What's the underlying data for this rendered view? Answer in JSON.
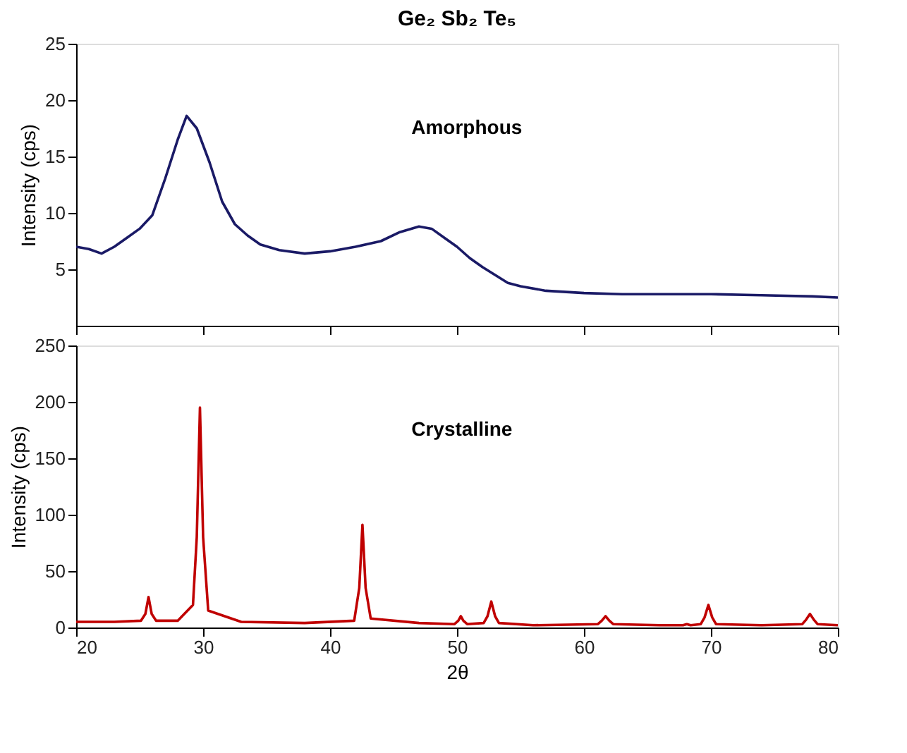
{
  "chart_data": [
    {
      "type": "line",
      "title": "Ge₂ Sb₂ Te₅",
      "ylabel": "Intensity (cps)",
      "annotations": [
        "Amorphous"
      ],
      "tick_labels": "y",
      "grid": false,
      "xlim": [
        20,
        80
      ],
      "xticks": [
        20,
        30,
        40,
        50,
        60,
        70,
        80
      ],
      "ylim": [
        0,
        25
      ],
      "yticks": [
        5,
        10,
        15,
        20,
        25
      ],
      "x": [
        20,
        21,
        22,
        23,
        24,
        25,
        26,
        27,
        28,
        28.7,
        29.5,
        30.5,
        31.5,
        32.5,
        33.5,
        34.5,
        36,
        38,
        40,
        42,
        44,
        45.5,
        47,
        48,
        49,
        50,
        51,
        52,
        53,
        54,
        55,
        57,
        60,
        63,
        66,
        70,
        74,
        78,
        80
      ],
      "series": [
        {
          "color": "#1a1a66",
          "values": [
            7.0,
            6.8,
            6.4,
            7.0,
            7.8,
            8.6,
            9.8,
            13,
            16.5,
            18.6,
            17.5,
            14.5,
            11,
            9,
            8,
            7.2,
            6.7,
            6.4,
            6.6,
            7.0,
            7.5,
            8.3,
            8.8,
            8.6,
            7.8,
            7.0,
            6.0,
            5.2,
            4.5,
            3.8,
            3.5,
            3.1,
            2.9,
            2.8,
            2.8,
            2.8,
            2.7,
            2.6,
            2.5
          ]
        }
      ]
    },
    {
      "type": "line",
      "xlabel": "2θ",
      "ylabel": "Intensity (cps)",
      "annotations": [
        "Crystalline"
      ],
      "grid": false,
      "xlim": [
        20,
        80
      ],
      "xticks": [
        20,
        30,
        40,
        50,
        60,
        70,
        80
      ],
      "ylim": [
        0,
        250
      ],
      "yticks": [
        0,
        50,
        100,
        150,
        200,
        250
      ],
      "x": [
        20,
        23,
        25.1,
        25.45,
        25.7,
        25.95,
        26.3,
        28,
        29.2,
        29.5,
        29.75,
        30,
        30.4,
        33,
        38,
        41.9,
        42.3,
        42.55,
        42.8,
        43.2,
        47,
        49.8,
        50.1,
        50.3,
        50.5,
        50.8,
        52.1,
        52.4,
        52.7,
        53,
        53.3,
        56,
        61.1,
        61.4,
        61.7,
        62,
        62.3,
        66,
        67.8,
        68.1,
        68.4,
        69.2,
        69.5,
        69.8,
        70.1,
        70.4,
        74,
        77.2,
        77.5,
        77.8,
        78.1,
        78.4,
        80
      ],
      "series": [
        {
          "color": "#c00000",
          "values": [
            5,
            5,
            6,
            12,
            27,
            12,
            6,
            6,
            20,
            80,
            195,
            80,
            15,
            5,
            4,
            6,
            35,
            91,
            35,
            8,
            4,
            3,
            6,
            10,
            6,
            3,
            4,
            10,
            23,
            10,
            4,
            2,
            3,
            6,
            10,
            6,
            3,
            2,
            2,
            3,
            2,
            3,
            9,
            20,
            9,
            3,
            2,
            3,
            7,
            12,
            7,
            3,
            2
          ]
        }
      ]
    }
  ]
}
